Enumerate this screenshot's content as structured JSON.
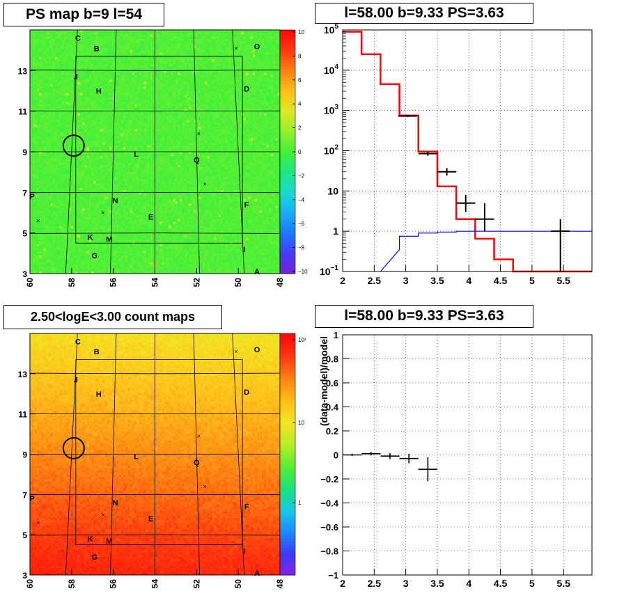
{
  "panels": {
    "ps_map": {
      "title": "PS map b=9 l=54",
      "x_ticks": [
        "60",
        "58",
        "56",
        "54",
        "52",
        "50",
        "48"
      ],
      "y_ticks": [
        "3",
        "5",
        "7",
        "9",
        "11",
        "13"
      ],
      "colorbar_ticks": [
        "10",
        "8",
        "6",
        "4",
        "2",
        "0",
        "−2",
        "−4",
        "−6",
        "−8",
        "−10"
      ],
      "colormap": [
        "#7a1fd0",
        "#4a38f5",
        "#1f74ff",
        "#1aa9f5",
        "#18d8d8",
        "#1de58a",
        "#3ef03a",
        "#8df02a",
        "#dbe925",
        "#ffc21a",
        "#ff8612",
        "#ff3d10",
        "#ff0b0b"
      ]
    },
    "counts_map": {
      "title": "2.50<logE<3.00 count maps",
      "x_ticks": [
        "60",
        "58",
        "56",
        "54",
        "52",
        "50",
        "48"
      ],
      "y_ticks": [
        "3",
        "5",
        "7",
        "9",
        "11",
        "13"
      ],
      "colorbar_ticks": [
        "10²",
        "10",
        "1"
      ],
      "colormap": [
        "#8a20e8",
        "#3c3af5",
        "#1a88ff",
        "#18c8e6",
        "#19e27a",
        "#58ee32",
        "#b6ee28",
        "#f2e624",
        "#ffbe1a",
        "#ff8212",
        "#ff3a0e",
        "#ff0808"
      ]
    },
    "spectrum": {
      "title": "l=58.00 b=9.33 PS=3.63"
    },
    "residual": {
      "title": "l=58.00 b=9.33 PS=3.63",
      "ylabel": "(data-model)/model"
    }
  },
  "chart_data": [
    {
      "type": "heatmap",
      "title": "PS map b=9 l=54",
      "xlim": [
        60,
        48
      ],
      "ylim": [
        3,
        15
      ],
      "xticks": [
        60,
        58,
        56,
        54,
        52,
        50,
        48
      ],
      "yticks": [
        3,
        5,
        7,
        9,
        11,
        13
      ],
      "zlim": [
        -10,
        10
      ],
      "zticks": [
        10,
        8,
        6,
        4,
        2,
        0,
        -2,
        -4,
        -6,
        -8,
        -10
      ],
      "source_labels": [
        {
          "label": "C",
          "l": 57.7,
          "b": 14.6
        },
        {
          "label": "B",
          "l": 56.8,
          "b": 14.1
        },
        {
          "label": "O",
          "l": 49.1,
          "b": 14.2
        },
        {
          "label": "J",
          "l": 57.8,
          "b": 12.7
        },
        {
          "label": "H",
          "l": 56.7,
          "b": 12.0
        },
        {
          "label": "D",
          "l": 49.6,
          "b": 12.1
        },
        {
          "label": "L",
          "l": 54.9,
          "b": 8.9
        },
        {
          "label": "Q",
          "l": 52.0,
          "b": 8.6
        },
        {
          "label": "P",
          "l": 59.9,
          "b": 6.8
        },
        {
          "label": "N",
          "l": 55.9,
          "b": 6.6
        },
        {
          "label": "F",
          "l": 49.6,
          "b": 6.4
        },
        {
          "label": "E",
          "l": 54.2,
          "b": 5.8
        },
        {
          "label": "K",
          "l": 57.1,
          "b": 4.8
        },
        {
          "label": "M",
          "l": 56.2,
          "b": 4.7
        },
        {
          "label": "I",
          "l": 49.7,
          "b": 4.2
        },
        {
          "label": "G",
          "l": 56.9,
          "b": 3.9
        },
        {
          "label": "A",
          "l": 49.1,
          "b": 3.1
        }
      ],
      "markers_x": [
        {
          "l": 50.1,
          "b": 14.1
        },
        {
          "l": 51.9,
          "b": 9.9
        },
        {
          "l": 51.6,
          "b": 7.4
        },
        {
          "l": 56.5,
          "b": 6.0
        },
        {
          "l": 59.6,
          "b": 5.6
        }
      ],
      "circle": {
        "l": 57.9,
        "b": 9.3
      }
    },
    {
      "type": "heatmap",
      "title": "2.50<logE<3.00 count maps",
      "xlim": [
        60,
        48
      ],
      "ylim": [
        3,
        15
      ],
      "xticks": [
        60,
        58,
        56,
        54,
        52,
        50,
        48
      ],
      "yticks": [
        3,
        5,
        7,
        9,
        11,
        13
      ],
      "z_log": true,
      "zticks": [
        100,
        10,
        1
      ],
      "circle": {
        "l": 57.9,
        "b": 9.3
      }
    },
    {
      "type": "line",
      "title": "l=58.00 b=9.33 PS=3.63",
      "xlim": [
        2,
        5.95
      ],
      "ylim": [
        0.1,
        100000
      ],
      "y_log": true,
      "xticks": [
        2,
        2.5,
        3,
        3.5,
        4,
        4.5,
        5,
        5.5
      ],
      "yticks": [
        "10^-1",
        "1",
        "10",
        "10^2",
        "10^3",
        "10^4",
        "10^5"
      ],
      "grid": true,
      "series": [
        {
          "color": "#ff0000",
          "style": "step",
          "edges": [
            2,
            2.3,
            2.6,
            2.9,
            3.2,
            3.5,
            3.8,
            4.1,
            4.4,
            4.7,
            5.95
          ],
          "values": [
            90000,
            25000,
            4500,
            750,
            95,
            13,
            2,
            0.65,
            0.2,
            0.1
          ]
        },
        {
          "color": "#0000ff",
          "style": "step",
          "edges": [
            2.6,
            2.9,
            3.2,
            3.5,
            3.8,
            4.1,
            4.4,
            4.7,
            5.95
          ],
          "values": [
            0.35,
            0.75,
            0.9,
            0.95,
            1.0,
            1.0,
            1.0,
            1.0
          ]
        },
        {
          "color": "#000000",
          "style": "errorbars",
          "x": [
            3.03,
            3.35,
            3.65,
            3.95,
            4.25,
            5.45
          ],
          "y": [
            730,
            85,
            30,
            5,
            2,
            1
          ],
          "xerr": [
            0.15,
            0.15,
            0.15,
            0.15,
            0.15,
            0.15
          ],
          "ylow": [
            690,
            75,
            24,
            3,
            1,
            0.1
          ],
          "yhigh": [
            770,
            95,
            37,
            8,
            5,
            2
          ]
        }
      ]
    },
    {
      "type": "scatter",
      "title": "l=58.00 b=9.33 PS=3.63",
      "ylabel": "(data-model)/model",
      "xlim": [
        2,
        5.95
      ],
      "ylim": [
        -1,
        1
      ],
      "xticks": [
        2,
        2.5,
        3,
        3.5,
        4,
        4.5,
        5,
        5.5
      ],
      "yticks": [
        -1,
        -0.8,
        -0.6,
        -0.4,
        -0.2,
        0,
        0.2,
        0.4,
        0.6,
        0.8,
        1
      ],
      "grid": true,
      "series": [
        {
          "color": "#000000",
          "x": [
            2.15,
            2.45,
            2.75,
            3.05,
            3.35
          ],
          "y": [
            0.0,
            0.01,
            -0.01,
            -0.03,
            -0.12
          ],
          "xerr": [
            0.15,
            0.15,
            0.15,
            0.15,
            0.15
          ],
          "yerr": [
            0.01,
            0.015,
            0.025,
            0.04,
            0.1
          ]
        }
      ]
    }
  ]
}
